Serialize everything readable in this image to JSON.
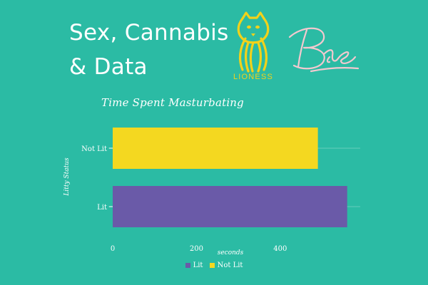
{
  "header": {
    "title_line1": "Sex, Cannabis",
    "title_line2": "& Data"
  },
  "logos": {
    "lioness": "LIONESS",
    "bae": "Bae"
  },
  "colors": {
    "background": "#2bbba4",
    "lit": "#6a5aa8",
    "not_lit": "#f4d820",
    "lioness_logo": "#f2d21a",
    "bae_logo": "#f2c9cf"
  },
  "chart_data": {
    "type": "bar",
    "orientation": "horizontal",
    "title": "Time Spent Masturbating",
    "xlabel": "seconds",
    "ylabel": "Litty Status",
    "categories": [
      "Not Lit",
      "Lit"
    ],
    "values": [
      490,
      560
    ],
    "series_colors": [
      "#f4d820",
      "#6a5aa8"
    ],
    "xlim": [
      0,
      600
    ],
    "xticks": [
      0,
      200,
      400
    ],
    "grid": "horizontal",
    "legend": {
      "position": "bottom",
      "entries": [
        {
          "label": "Lit",
          "color": "#6a5aa8"
        },
        {
          "label": "Not Lit",
          "color": "#f4d820"
        }
      ]
    }
  }
}
